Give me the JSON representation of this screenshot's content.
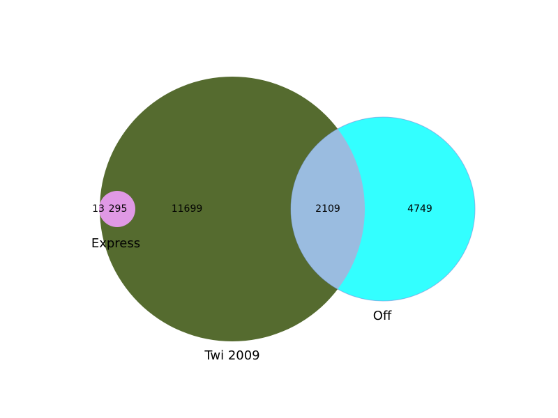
{
  "diagram": {
    "type": "venn3",
    "sets": [
      {
        "id": "twi",
        "name": "Twi 2009",
        "color": "#556b2f"
      },
      {
        "id": "off",
        "name": "Off",
        "color": "#33ffff"
      },
      {
        "id": "express",
        "name": "Express",
        "color": "#e099e5"
      }
    ],
    "intersection_color": "#9abce0",
    "regions": [
      {
        "id": "express-only",
        "sets": [
          "express"
        ],
        "label": "13"
      },
      {
        "id": "twi-express",
        "sets": [
          "twi",
          "express"
        ],
        "label": "295"
      },
      {
        "id": "twi-only",
        "sets": [
          "twi"
        ],
        "label": "11699"
      },
      {
        "id": "twi-off",
        "sets": [
          "twi",
          "off"
        ],
        "label": "2109"
      },
      {
        "id": "off-only",
        "sets": [
          "off"
        ],
        "label": "4749"
      }
    ]
  }
}
